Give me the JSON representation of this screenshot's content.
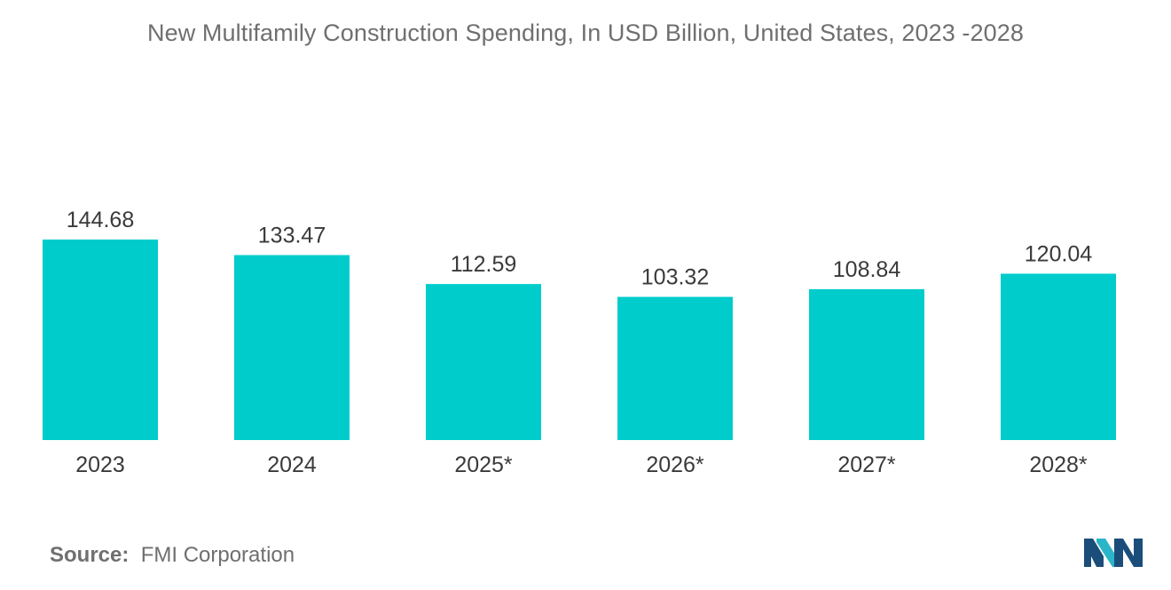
{
  "chart_data": {
    "type": "bar",
    "title": "New Multifamily Construction Spending, In USD Billion, United States, 2023 -2028",
    "categories": [
      "2023",
      "2024",
      "2025*",
      "2026*",
      "2027*",
      "2028*"
    ],
    "values": [
      144.68,
      133.47,
      112.59,
      103.32,
      108.84,
      120.04
    ],
    "value_labels": [
      "144.68",
      "133.47",
      "112.59",
      "103.32",
      "108.84",
      "120.04"
    ],
    "xlabel": "",
    "ylabel": "",
    "ylim": [
      0,
      144.68
    ],
    "grid": false,
    "legend": "none",
    "bar_color": "#00cccc"
  },
  "source": {
    "label": "Source:",
    "text": "FMI Corporation"
  },
  "logo": {
    "icon": "mordor-logo-icon",
    "colors": [
      "#1b4d7a",
      "#2bb5c8"
    ]
  }
}
